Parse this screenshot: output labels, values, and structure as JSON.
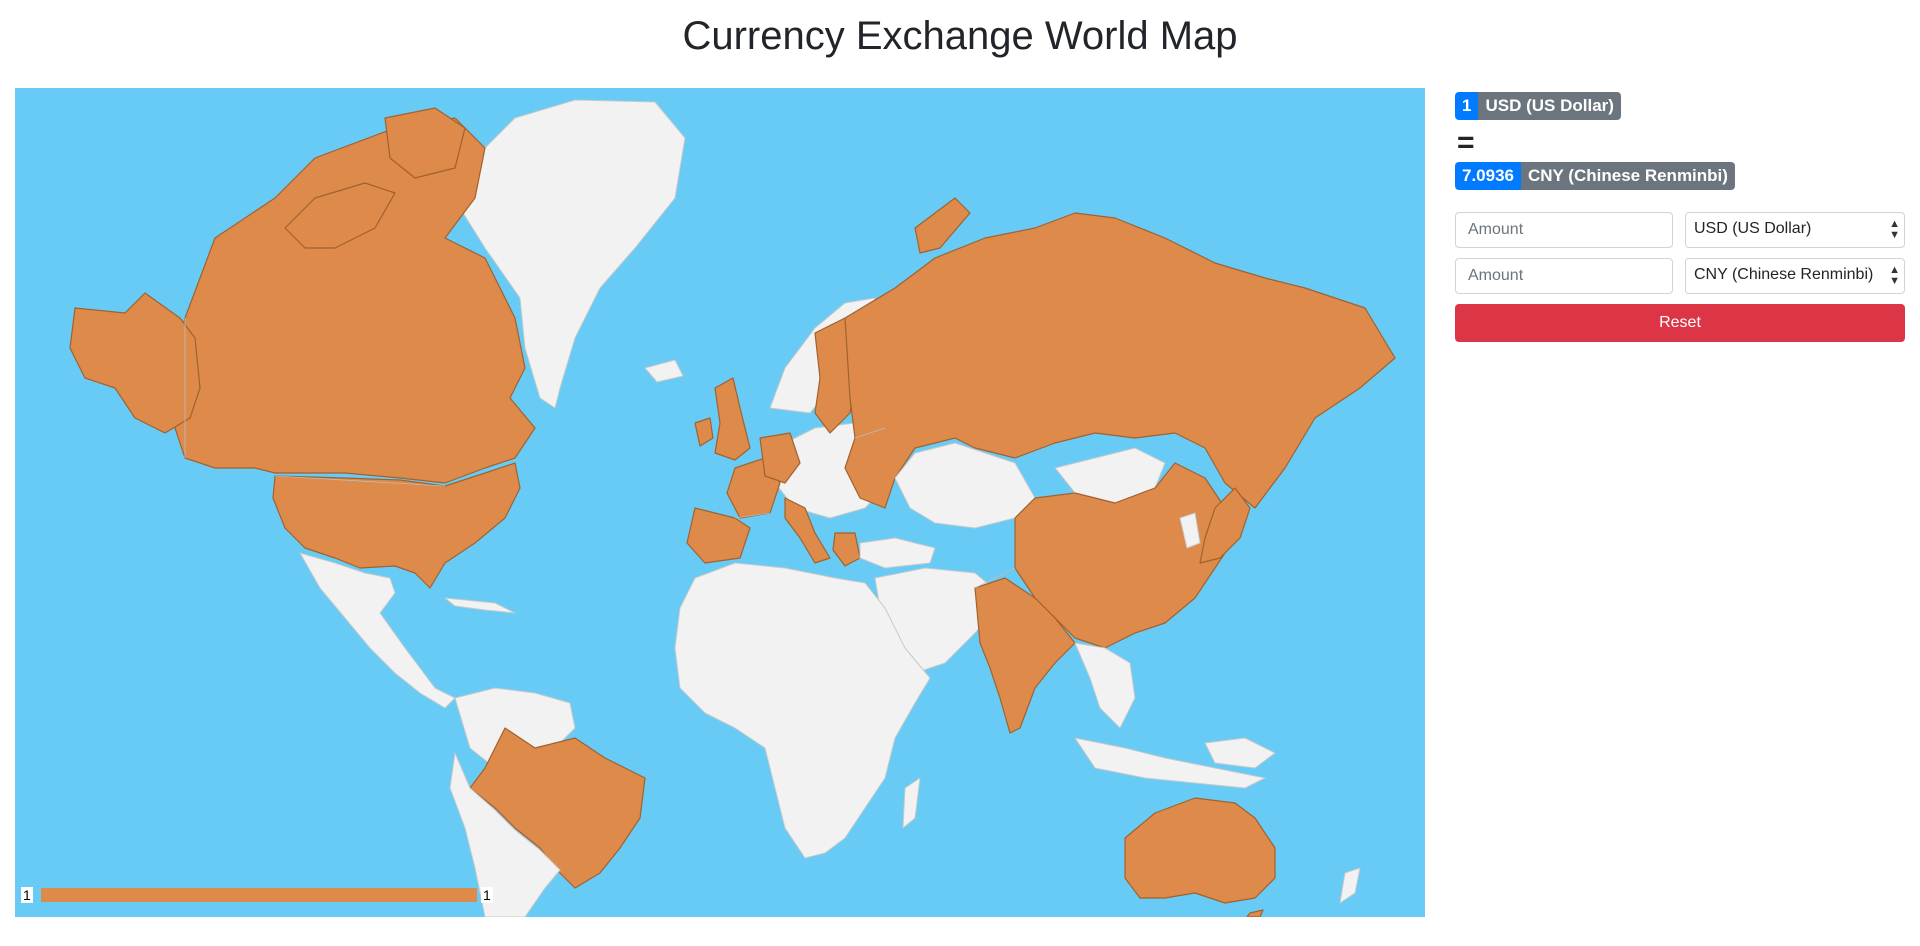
{
  "page": {
    "title": "Currency Exchange World Map"
  },
  "map": {
    "ocean_color": "#67cbf5",
    "highlight_color": "#dd8a4a",
    "other_color": "#f2f2f2",
    "legend": {
      "min_label": "1",
      "max_label": "1"
    },
    "highlighted_countries": [
      "Canada",
      "United States",
      "Brazil",
      "United Kingdom",
      "Ireland",
      "France",
      "Spain",
      "Portugal",
      "Italy",
      "Germany",
      "Netherlands",
      "Belgium",
      "Austria",
      "Greece",
      "Finland",
      "Estonia",
      "Latvia",
      "Lithuania",
      "Slovakia",
      "Slovenia",
      "Cyprus",
      "Russia",
      "China",
      "India",
      "Japan",
      "Australia",
      "Greenland-no"
    ]
  },
  "conversion": {
    "from_amount": "1",
    "from_currency": "USD (US Dollar)",
    "equals": "=",
    "to_amount": "7.0936",
    "to_currency": "CNY (Chinese Renminbi)"
  },
  "form": {
    "amount_placeholder_1": "Amount",
    "currency_1": "USD (US Dollar)",
    "amount_placeholder_2": "Amount",
    "currency_2": "CNY (Chinese Renminbi)",
    "reset_label": "Reset"
  }
}
